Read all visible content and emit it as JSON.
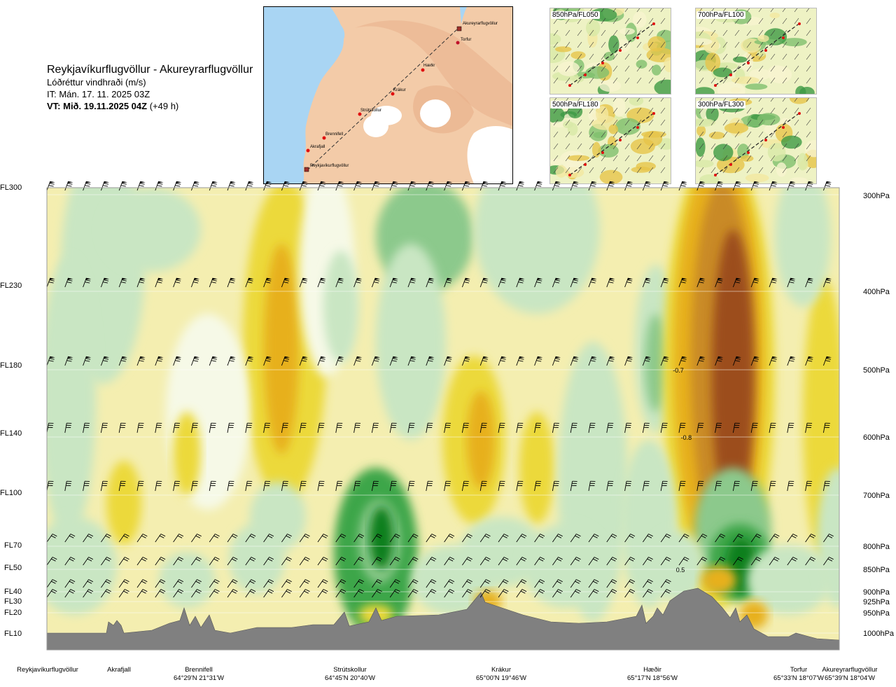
{
  "title": {
    "route": "Reykjavíkurflugvöllur - Akureyrarflugvöllur",
    "quantity": "Lóðréttur vindhraði (m/s)",
    "it": "IT: Mán. 17. 11. 2025 03Z",
    "vt": "VT: Mið. 19.11.2025 04Z",
    "lead": "(+49 h)"
  },
  "map": {
    "places": [
      "Akureyrarflugvöllur",
      "Torfur",
      "Hæðir",
      "Krákur",
      "Strútskollur",
      "Brennifell",
      "Akrafjall",
      "Reykjavíkurflugvöllur"
    ]
  },
  "thumbnails": [
    {
      "label": "850hPa/FL050"
    },
    {
      "label": "700hPa/FL100"
    },
    {
      "label": "500hPa/FL180"
    },
    {
      "label": "300hPa/FL300"
    }
  ],
  "levels_fl": [
    "FL300",
    "FL230",
    "FL180",
    "FL140",
    "FL100",
    "FL70",
    "FL50",
    "FL40",
    "FL30",
    "FL20",
    "FL10"
  ],
  "levels_hpa": [
    "300hPa",
    "400hPa",
    "500hPa",
    "600hPa",
    "700hPa",
    "800hPa",
    "850hPa",
    "900hPa",
    "925hPa",
    "950hPa",
    "1000hPa"
  ],
  "stations": [
    {
      "name": "Reykjavíkurflugvöllur",
      "coord": ""
    },
    {
      "name": "Akrafjall",
      "coord": ""
    },
    {
      "name": "Brennifell",
      "coord": "64°29'N 21°31'W"
    },
    {
      "name": "Strútskollur",
      "coord": "64°45'N 20°40'W"
    },
    {
      "name": "Krákur",
      "coord": "65°00'N 19°46'W"
    },
    {
      "name": "Hæðir",
      "coord": "65°17'N 18°56'W"
    },
    {
      "name": "Torfur",
      "coord": "65°33'N 18°07'W"
    },
    {
      "name": "Akureyrarflugvöllur",
      "coord": "65°39'N 18°04'W"
    }
  ],
  "colors": {
    "green_dark": "#0f7f1e",
    "green_mid": "#3ea64a",
    "green_light": "#8cc98c",
    "green_pale": "#c9e6c3",
    "neutral": "#f6f9e7",
    "yellow_pale": "#f4eeb0",
    "yellow": "#ecd93a",
    "orange": "#e7b01e",
    "brown_light": "#c98a28",
    "brown": "#9c4d1c",
    "terrain": "#808080"
  },
  "chart_data": {
    "type": "heatmap",
    "title": "Lóðréttur vindhraði (m/s)",
    "xlabel": "",
    "ylabel": "",
    "y_axis_left": [
      "FL300",
      "FL230",
      "FL180",
      "FL140",
      "FL100",
      "FL70",
      "FL50",
      "FL40",
      "FL30",
      "FL20",
      "FL10"
    ],
    "y_axis_right_hpa": [
      300,
      400,
      500,
      600,
      700,
      800,
      850,
      900,
      925,
      950,
      1000
    ],
    "x_stations": [
      "Reykjavíkurflugvöllur",
      "Akrafjall",
      "Brennifell",
      "Strútskollur",
      "Krákur",
      "Hæðir",
      "Torfur",
      "Akureyrarflugvöllur"
    ],
    "annotations": [
      {
        "text": "-0.7",
        "hpa": 500,
        "x_frac": 0.79
      },
      {
        "text": "-0.8",
        "hpa": 600,
        "x_frac": 0.8
      },
      {
        "text": "0.5",
        "hpa": 850,
        "x_frac": 0.794
      }
    ],
    "wind_barb_levels_hpa": [
      300,
      400,
      500,
      600,
      700,
      800,
      850,
      900,
      925
    ]
  }
}
